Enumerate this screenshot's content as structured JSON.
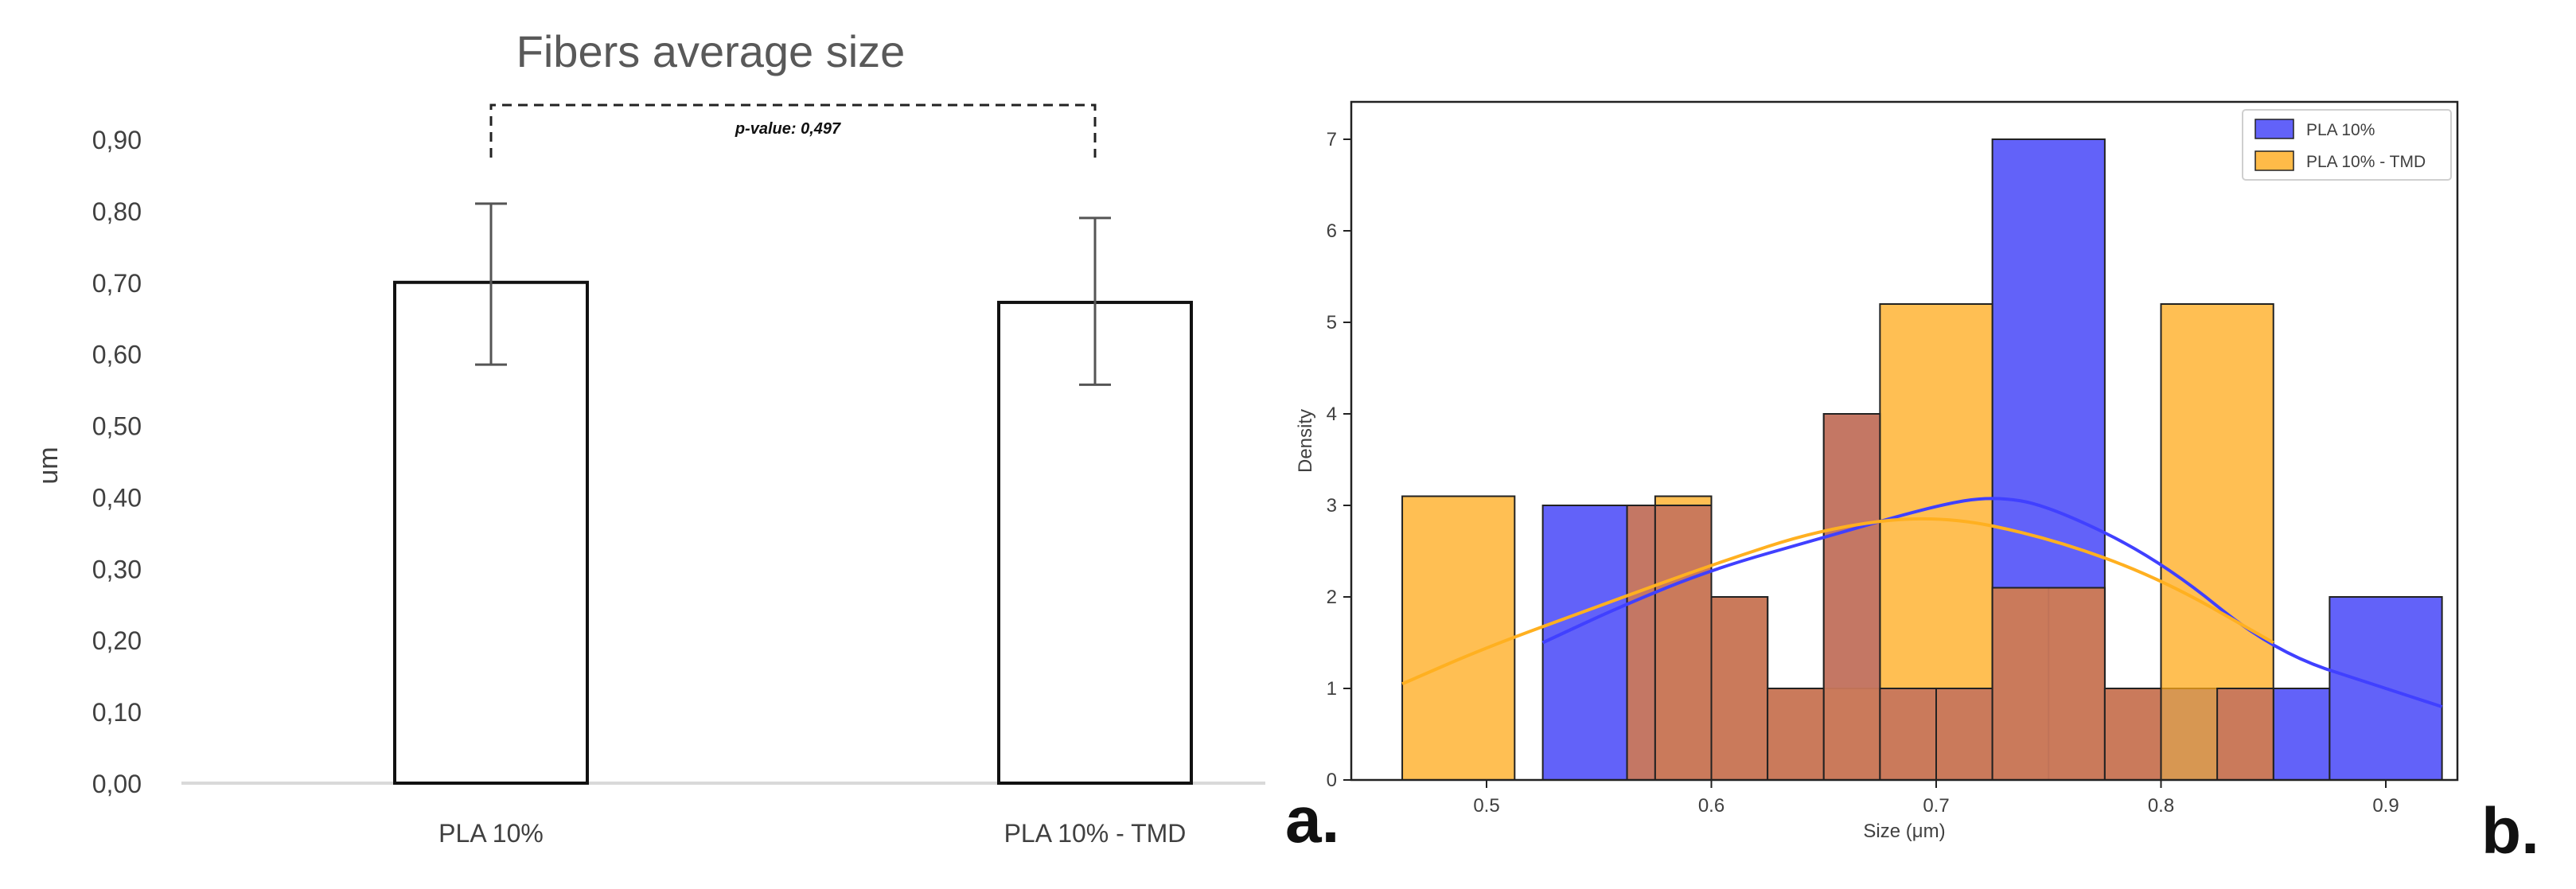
{
  "chart_data": [
    {
      "type": "bar",
      "title": "Fibers average size",
      "ylabel": "um",
      "xlabel": "",
      "categories": [
        "PLA 10%",
        "PLA 10% - TMD"
      ],
      "values": [
        0.7,
        0.672
      ],
      "error_low": [
        0.585,
        0.557
      ],
      "error_high": [
        0.81,
        0.79
      ],
      "ylim": [
        0,
        0.9
      ],
      "yticks": [
        "0,00",
        "0,10",
        "0,20",
        "0,30",
        "0,40",
        "0,50",
        "0,60",
        "0,70",
        "0,80",
        "0,90"
      ],
      "annotation": "p-value: 0,497",
      "panel_label": "a.",
      "grid": false,
      "legend": "none"
    },
    {
      "type": "bar",
      "subtype": "histogram",
      "title": "",
      "xlabel": "Size (μm)",
      "ylabel": "Density",
      "xlim": [
        0.45,
        0.935
      ],
      "ylim": [
        0,
        7.3
      ],
      "xticks": [
        "0.5",
        "0.6",
        "0.7",
        "0.8",
        "0.9"
      ],
      "yticks": [
        "0",
        "1",
        "2",
        "3",
        "4",
        "5",
        "6",
        "7"
      ],
      "legend": "top-right",
      "panel_label": "b.",
      "grid": false,
      "series": [
        {
          "name": "PLA 10%",
          "color": "#3b3bf7",
          "bins": [
            {
              "x0": 0.525,
              "x1": 0.5625,
              "density": 3.0
            },
            {
              "x0": 0.5625,
              "x1": 0.6,
              "density": 3.0
            },
            {
              "x0": 0.6,
              "x1": 0.625,
              "density": 2.0
            },
            {
              "x0": 0.625,
              "x1": 0.65,
              "density": 1.0
            },
            {
              "x0": 0.65,
              "x1": 0.675,
              "density": 4.0
            },
            {
              "x0": 0.675,
              "x1": 0.7,
              "density": 1.0
            },
            {
              "x0": 0.7,
              "x1": 0.725,
              "density": 1.0
            },
            {
              "x0": 0.725,
              "x1": 0.775,
              "density": 7.0
            },
            {
              "x0": 0.775,
              "x1": 0.8,
              "density": 1.0
            },
            {
              "x0": 0.8,
              "x1": 0.85,
              "density": 1.0
            },
            {
              "x0": 0.85,
              "x1": 0.875,
              "density": 1.0
            },
            {
              "x0": 0.875,
              "x1": 0.925,
              "density": 2.0
            }
          ],
          "kde": [
            [
              0.525,
              1.5
            ],
            [
              0.56,
              1.9
            ],
            [
              0.6,
              2.3
            ],
            [
              0.65,
              2.65
            ],
            [
              0.7,
              3.0
            ],
            [
              0.725,
              3.1
            ],
            [
              0.75,
              3.0
            ],
            [
              0.8,
              2.4
            ],
            [
              0.85,
              1.4
            ],
            [
              0.9,
              1.0
            ],
            [
              0.925,
              0.8
            ]
          ]
        },
        {
          "name": "PLA 10% - TMD",
          "color": "#ffaa1a",
          "bins": [
            {
              "x0": 0.4625,
              "x1": 0.5125,
              "density": 3.1
            },
            {
              "x0": 0.575,
              "x1": 0.6,
              "density": 3.1
            },
            {
              "x0": 0.6,
              "x1": 0.625,
              "density": 2.0
            },
            {
              "x0": 0.625,
              "x1": 0.65,
              "density": 1.0
            },
            {
              "x0": 0.65,
              "x1": 0.675,
              "density": 1.0
            },
            {
              "x0": 0.675,
              "x1": 0.725,
              "density": 5.2
            },
            {
              "x0": 0.725,
              "x1": 0.75,
              "density": 2.1
            },
            {
              "x0": 0.75,
              "x1": 0.775,
              "density": 2.1
            },
            {
              "x0": 0.775,
              "x1": 0.8,
              "density": 1.0
            },
            {
              "x0": 0.8,
              "x1": 0.85,
              "density": 5.2
            }
          ],
          "kde": [
            [
              0.4625,
              1.05
            ],
            [
              0.5,
              1.45
            ],
            [
              0.55,
              1.9
            ],
            [
              0.6,
              2.35
            ],
            [
              0.65,
              2.75
            ],
            [
              0.7,
              2.9
            ],
            [
              0.75,
              2.65
            ],
            [
              0.8,
              2.2
            ],
            [
              0.85,
              1.5
            ]
          ]
        }
      ],
      "overlap_color": "#c9785c",
      "overlap_bins": [
        {
          "x0": 0.5625,
          "x1": 0.575,
          "density": 3.0
        },
        {
          "x0": 0.575,
          "x1": 0.6,
          "density": 3.0
        },
        {
          "x0": 0.6,
          "x1": 0.625,
          "density": 2.0
        },
        {
          "x0": 0.625,
          "x1": 0.65,
          "density": 1.0
        },
        {
          "x0": 0.65,
          "x1": 0.675,
          "density": 4.0
        },
        {
          "x0": 0.675,
          "x1": 0.7,
          "density": 1.0
        },
        {
          "x0": 0.7,
          "x1": 0.725,
          "density": 1.0
        },
        {
          "x0": 0.725,
          "x1": 0.775,
          "density": 2.1
        },
        {
          "x0": 0.775,
          "x1": 0.8,
          "density": 1.0
        },
        {
          "x0": 0.825,
          "x1": 0.85,
          "density": 1.0
        }
      ]
    }
  ]
}
